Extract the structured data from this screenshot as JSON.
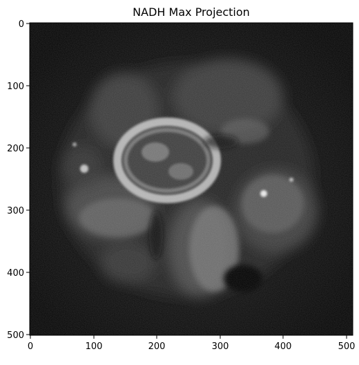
{
  "figure": {
    "title": "NADH Max Projection",
    "image_kind": "grayscale microscopy max projection",
    "colormap": "gray",
    "background_color": "#ffffff"
  },
  "axes": {
    "x_ticks": [
      "0",
      "100",
      "200",
      "300",
      "400",
      "500"
    ],
    "y_ticks": [
      "0",
      "100",
      "200",
      "300",
      "400",
      "500"
    ],
    "x_range": [
      0,
      511
    ],
    "y_range": [
      0,
      511
    ]
  }
}
